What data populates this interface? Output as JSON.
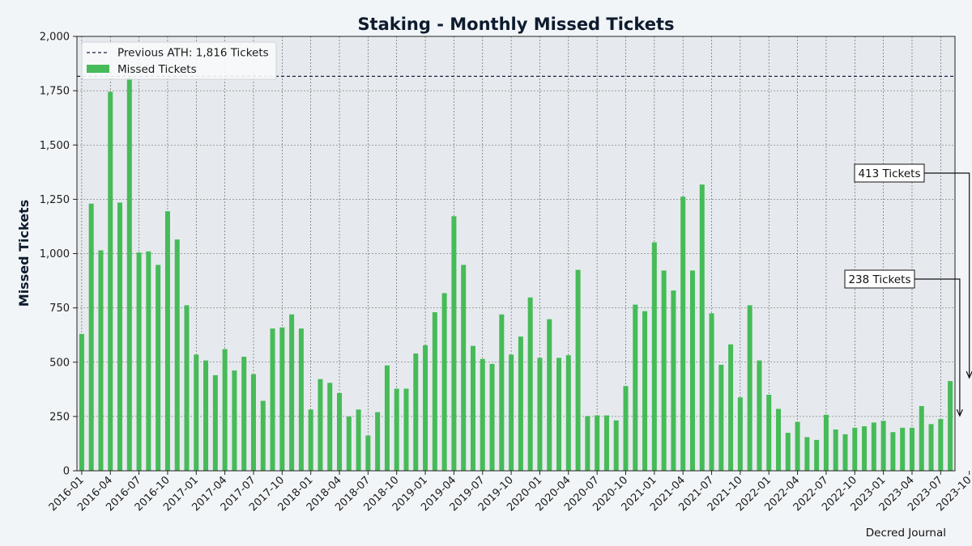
{
  "chart_data": {
    "type": "bar",
    "title": "Staking - Monthly Missed Tickets",
    "xlabel": "",
    "ylabel": "Missed Tickets",
    "ylim": [
      0,
      2000
    ],
    "yticks": [
      "0",
      "250",
      "500",
      "750",
      "1,000",
      "1,250",
      "1,500",
      "1,750",
      "2,000"
    ],
    "ytick_values": [
      0,
      250,
      500,
      750,
      1000,
      1250,
      1500,
      1750,
      2000
    ],
    "xticks": [
      "2016-01",
      "2016-04",
      "2016-07",
      "2016-10",
      "2017-01",
      "2017-04",
      "2017-07",
      "2017-10",
      "2018-01",
      "2018-04",
      "2018-07",
      "2018-10",
      "2019-01",
      "2019-04",
      "2019-07",
      "2019-10",
      "2020-01",
      "2020-04",
      "2020-07",
      "2020-10",
      "2021-01",
      "2021-04",
      "2021-07",
      "2021-10",
      "2022-01",
      "2022-04",
      "2022-07",
      "2022-10",
      "2023-01",
      "2023-04",
      "2023-07",
      "2023-10"
    ],
    "grid": true,
    "legend_position": "top-left",
    "bar_color": "#46bb58",
    "reference_color": "#1a2140",
    "series": [
      {
        "name": "Missed Tickets",
        "start": "2016-01",
        "values": [
          630,
          1230,
          1015,
          1745,
          1235,
          1810,
          1005,
          1010,
          948,
          1195,
          1065,
          762,
          535,
          508,
          440,
          560,
          462,
          525,
          445,
          322,
          655,
          660,
          720,
          655,
          282,
          422,
          405,
          358,
          250,
          282,
          162,
          270,
          485,
          378,
          378,
          540,
          578,
          730,
          818,
          1172,
          948,
          575,
          515,
          492,
          720,
          535,
          618,
          798,
          520,
          698,
          520,
          532,
          925,
          252,
          255,
          255,
          232,
          390,
          765,
          735,
          1052,
          922,
          830,
          1262,
          922,
          1318,
          725,
          488,
          582,
          338,
          762,
          508,
          350,
          285,
          175,
          225,
          155,
          142,
          258,
          190,
          168,
          198,
          205,
          222,
          230,
          178,
          198,
          198,
          298,
          215,
          238,
          413
        ]
      }
    ],
    "reference_line": {
      "label": "Previous ATH: 1,816 Tickets",
      "value": 1816
    },
    "annotations": [
      {
        "text": "413 Tickets",
        "month": "2023-10",
        "value": 413
      },
      {
        "text": "238 Tickets",
        "month": "2023-09",
        "value": 238
      }
    ],
    "credit": "Decred Journal"
  }
}
